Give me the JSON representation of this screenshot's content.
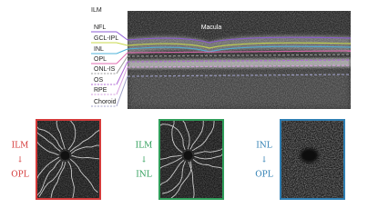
{
  "oct": {
    "top_label": "ILM",
    "macula": "Macula",
    "layers": [
      {
        "label": "NFL",
        "color": "#8e5bd6"
      },
      {
        "label": "GCL-IPL",
        "color": "#c8d94a"
      },
      {
        "label": "INL",
        "color": "#4fb3d9"
      },
      {
        "label": "OPL",
        "color": "#e06bb0"
      },
      {
        "label": "ONL-IS",
        "color": "#9a9a9a"
      },
      {
        "label": "OS",
        "color": "#b06bd6"
      },
      {
        "label": "RPE",
        "color": "#d6a0e0"
      },
      {
        "label": "Choroid",
        "color": "#a0a0c8"
      }
    ]
  },
  "panels": [
    {
      "from": "ILM",
      "arrow": "↓",
      "to": "OPL",
      "color": "#d43a3a"
    },
    {
      "from": "ILM",
      "arrow": "↓",
      "to": "INL",
      "color": "#2f9e5a"
    },
    {
      "from": "INL",
      "arrow": "↓",
      "to": "OPL",
      "color": "#2f7fb3"
    }
  ]
}
